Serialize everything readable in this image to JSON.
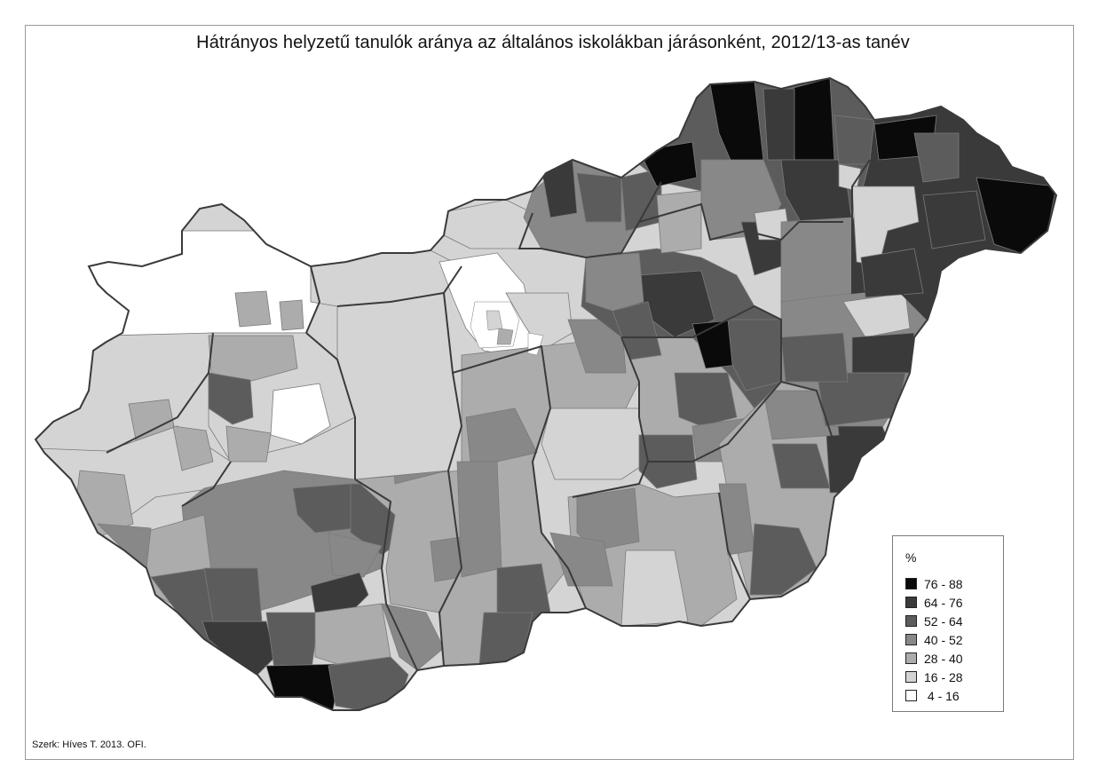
{
  "title": "Hátrányos helyzetű tanulók aránya az általános iskolákban járásonként, 2012/13-as tanév",
  "credit": "Szerk: Híves T. 2013. OFI.",
  "legend": {
    "unit": "%",
    "classes": [
      {
        "label": "76 - 88",
        "color": "#0a0a0a"
      },
      {
        "label": "64 - 76",
        "color": "#3a3a3a"
      },
      {
        "label": "52 - 64",
        "color": "#5c5c5c"
      },
      {
        "label": "40 - 52",
        "color": "#888888"
      },
      {
        "label": "28 - 40",
        "color": "#acacac"
      },
      {
        "label": "16 - 28",
        "color": "#d4d4d4"
      },
      {
        "label": " 4 - 16",
        "color": "#ffffff"
      }
    ]
  }
}
